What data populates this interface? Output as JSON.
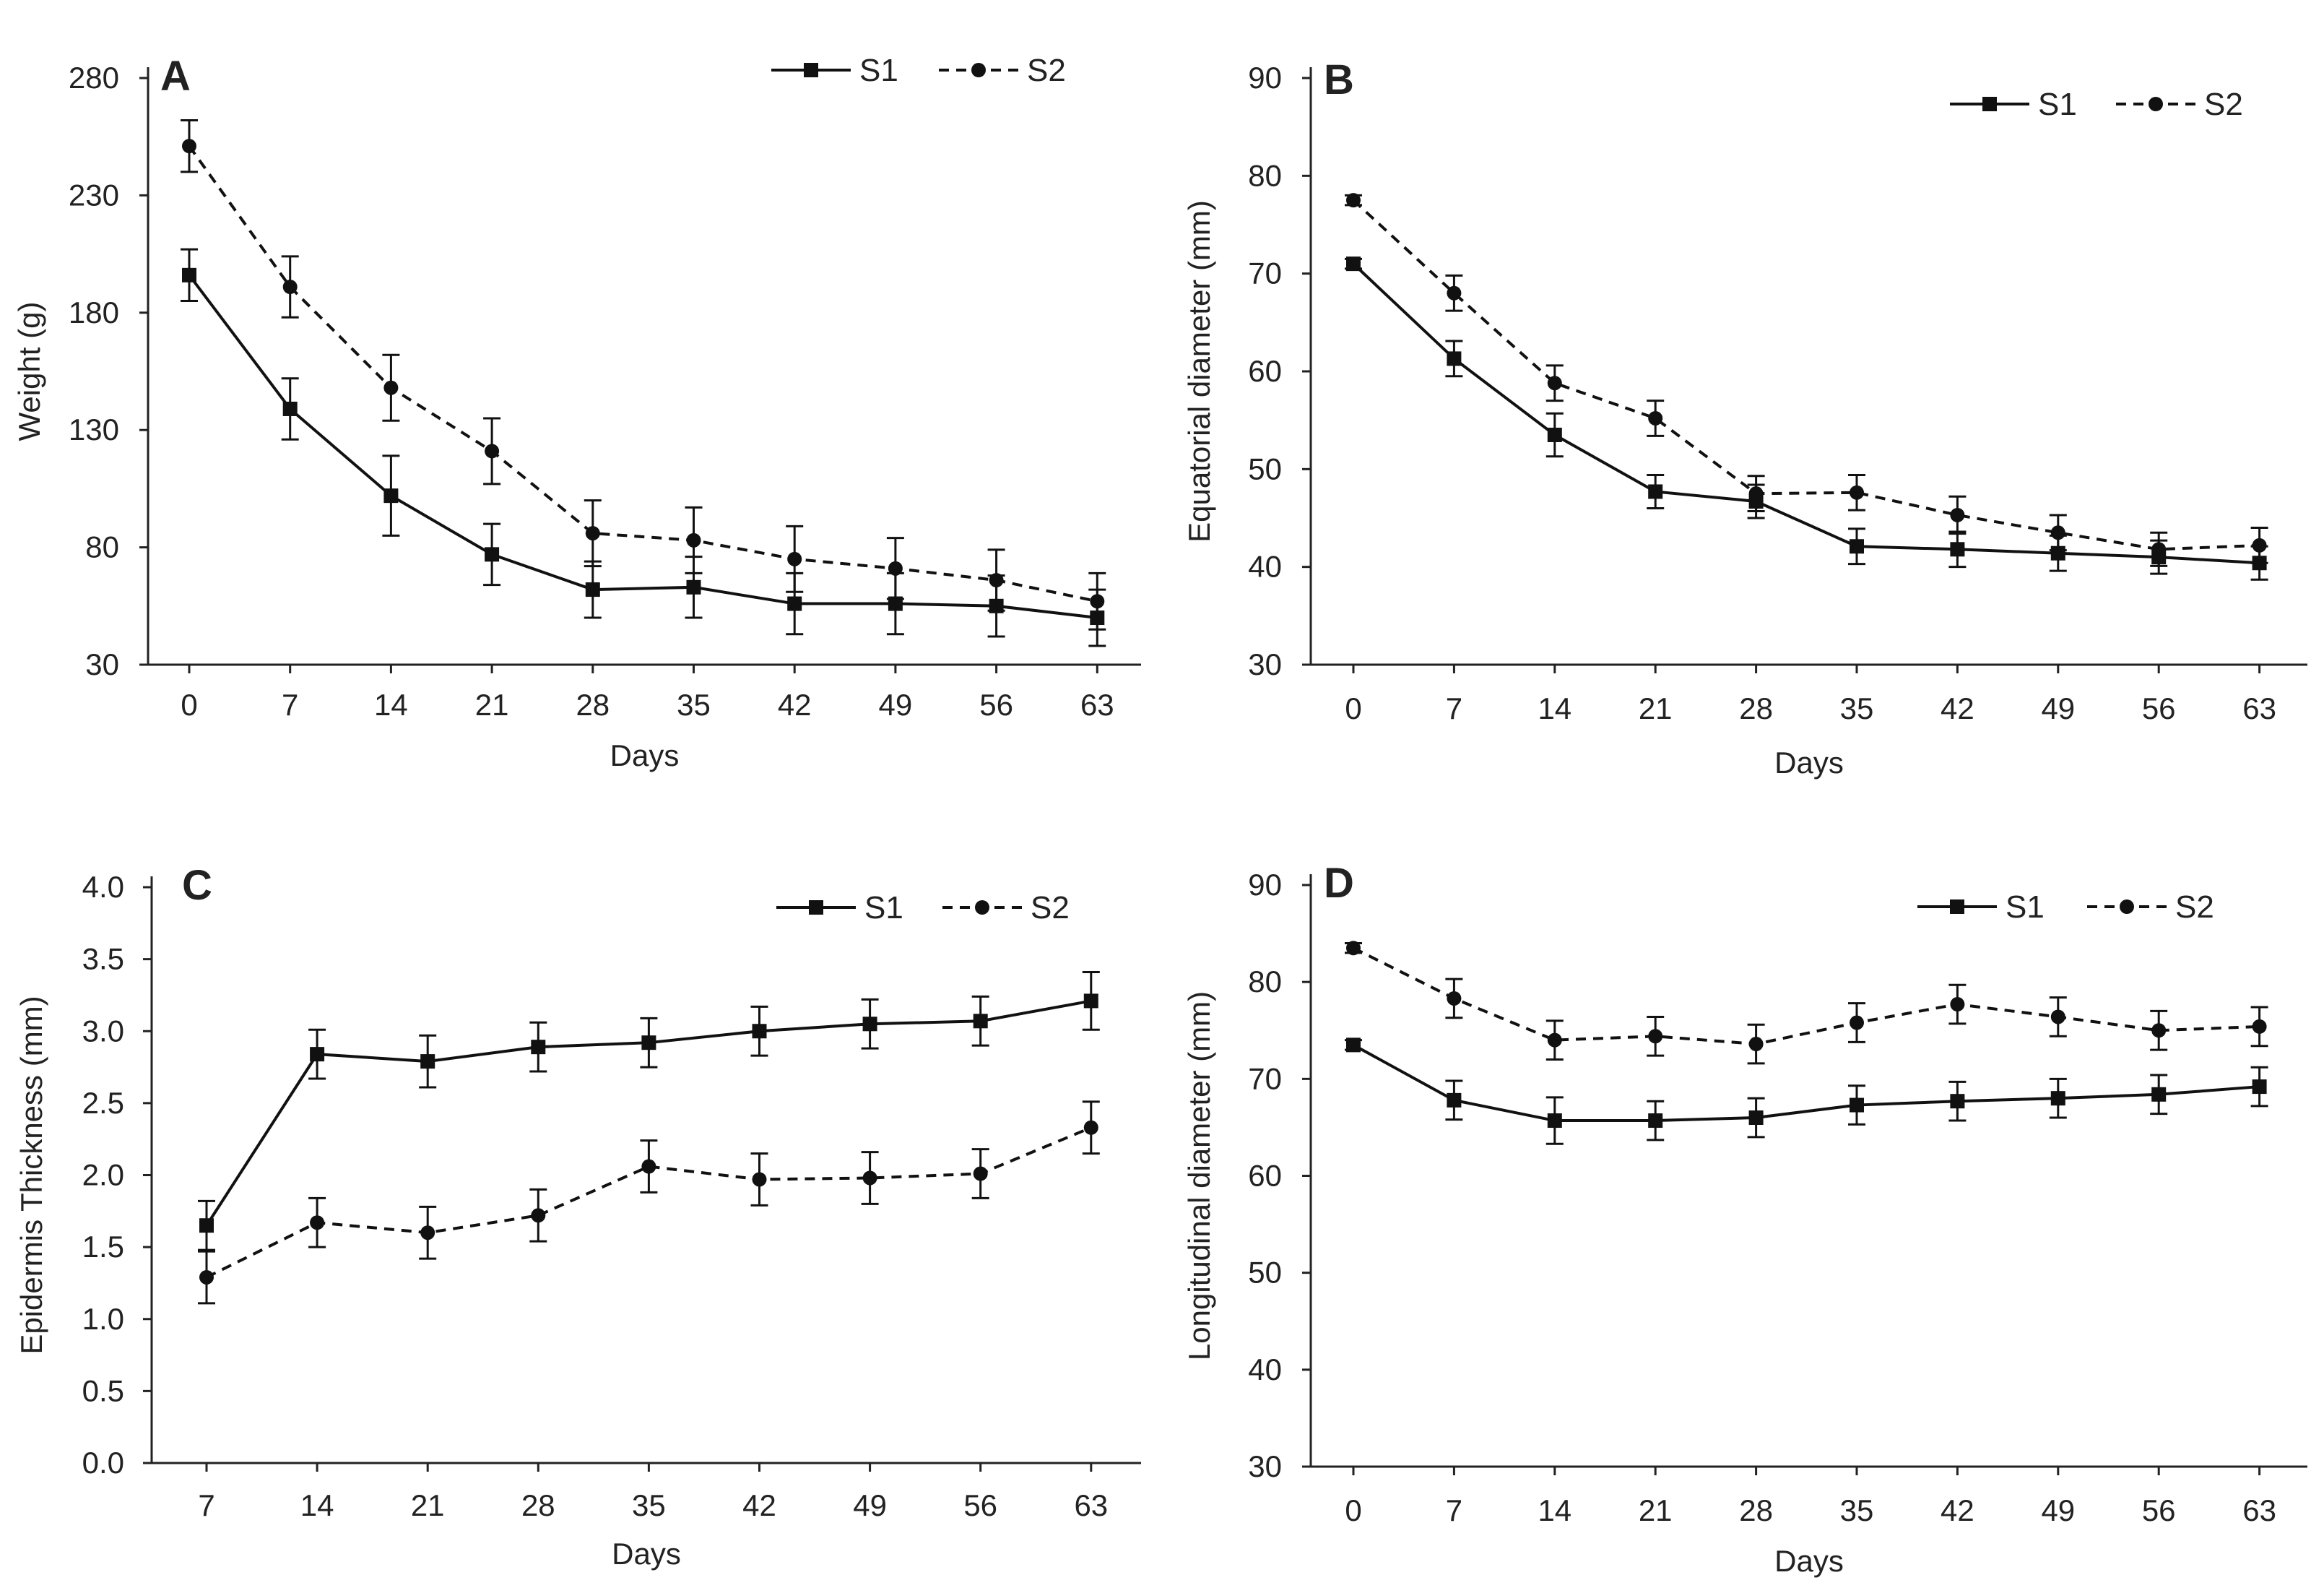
{
  "colors": {
    "line": "#111111",
    "axis": "#222222",
    "background": "#ffffff"
  },
  "chart_data": [
    {
      "panel": "A",
      "type": "line",
      "xlabel": "Days",
      "ylabel": "Weight (g)",
      "x": [
        0,
        7,
        14,
        21,
        28,
        35,
        42,
        49,
        56,
        63
      ],
      "ylim": [
        30,
        280
      ],
      "yticks": [
        30,
        80,
        130,
        180,
        230,
        280
      ],
      "legend_position": "top-right",
      "grid": false,
      "series": [
        {
          "name": "S1",
          "style": "solid",
          "marker": "square",
          "values": [
            196,
            139,
            102,
            77,
            62,
            63,
            56,
            56,
            55,
            50
          ],
          "errors": [
            11,
            13,
            17,
            13,
            12,
            13,
            13,
            13,
            13,
            12
          ]
        },
        {
          "name": "S2",
          "style": "dashed",
          "marker": "circle",
          "values": [
            251,
            191,
            148,
            121,
            86,
            83,
            75,
            71,
            66,
            57
          ],
          "errors": [
            11,
            13,
            14,
            14,
            14,
            14,
            14,
            13,
            13,
            12
          ]
        }
      ]
    },
    {
      "panel": "B",
      "type": "line",
      "xlabel": "Days",
      "ylabel": "Equatorial diameter (mm)",
      "x": [
        0,
        7,
        14,
        21,
        28,
        35,
        42,
        49,
        56,
        63
      ],
      "ylim": [
        30,
        90
      ],
      "yticks": [
        30,
        40,
        50,
        60,
        70,
        80,
        90
      ],
      "legend_position": "top-right",
      "grid": false,
      "series": [
        {
          "name": "S1",
          "style": "solid",
          "marker": "square",
          "values": [
            71,
            61.3,
            53.5,
            47.7,
            46.7,
            42.1,
            41.8,
            41.4,
            41.0,
            40.4
          ],
          "errors": [
            0.5,
            1.8,
            2.2,
            1.7,
            1.7,
            1.8,
            1.8,
            1.8,
            1.7,
            1.7
          ]
        },
        {
          "name": "S2",
          "style": "dashed",
          "marker": "circle",
          "values": [
            77.5,
            68.0,
            58.8,
            55.2,
            47.5,
            47.6,
            45.3,
            43.5,
            41.8,
            42.2
          ],
          "errors": [
            0.5,
            1.8,
            1.8,
            1.8,
            1.8,
            1.8,
            1.9,
            1.8,
            1.7,
            1.8
          ]
        }
      ]
    },
    {
      "panel": "C",
      "type": "line",
      "xlabel": "Days",
      "ylabel": "Epidermis Thickness (mm)",
      "x": [
        7,
        14,
        21,
        28,
        35,
        42,
        49,
        56,
        63
      ],
      "ylim": [
        0.0,
        4.0
      ],
      "yticks": [
        "0.0",
        "0.5",
        "1.0",
        "1.5",
        "2.0",
        "2.5",
        "3.0",
        "3.5",
        "4.0"
      ],
      "legend_position": "top-right",
      "grid": false,
      "series": [
        {
          "name": "S1",
          "style": "solid",
          "marker": "square",
          "values": [
            1.65,
            2.84,
            2.79,
            2.89,
            2.92,
            3.0,
            3.05,
            3.07,
            3.21
          ],
          "errors": [
            0.17,
            0.17,
            0.18,
            0.17,
            0.17,
            0.17,
            0.17,
            0.17,
            0.2
          ]
        },
        {
          "name": "S2",
          "style": "dashed",
          "marker": "circle",
          "values": [
            1.29,
            1.67,
            1.6,
            1.72,
            2.06,
            1.97,
            1.98,
            2.01,
            2.33
          ],
          "errors": [
            0.18,
            0.17,
            0.18,
            0.18,
            0.18,
            0.18,
            0.18,
            0.17,
            0.18
          ]
        }
      ]
    },
    {
      "panel": "D",
      "type": "line",
      "xlabel": "Days",
      "ylabel": "Longitudinal diameter (mm)",
      "x": [
        0,
        7,
        14,
        21,
        28,
        35,
        42,
        49,
        56,
        63
      ],
      "ylim": [
        30,
        90
      ],
      "yticks": [
        30,
        40,
        50,
        60,
        70,
        80,
        90
      ],
      "legend_position": "top-right",
      "grid": false,
      "series": [
        {
          "name": "S1",
          "style": "solid",
          "marker": "square",
          "values": [
            73.5,
            67.8,
            65.7,
            65.7,
            66.0,
            67.3,
            67.7,
            68.0,
            68.4,
            69.2
          ],
          "errors": [
            0.5,
            2.0,
            2.4,
            2.0,
            2.0,
            2.0,
            2.0,
            2.0,
            2.0,
            2.0
          ]
        },
        {
          "name": "S2",
          "style": "dashed",
          "marker": "circle",
          "values": [
            83.5,
            78.3,
            74.0,
            74.4,
            73.6,
            75.8,
            77.7,
            76.4,
            75.0,
            75.4
          ],
          "errors": [
            0.5,
            2.0,
            2.0,
            2.0,
            2.0,
            2.0,
            2.0,
            2.0,
            2.0,
            2.0
          ]
        }
      ]
    }
  ]
}
